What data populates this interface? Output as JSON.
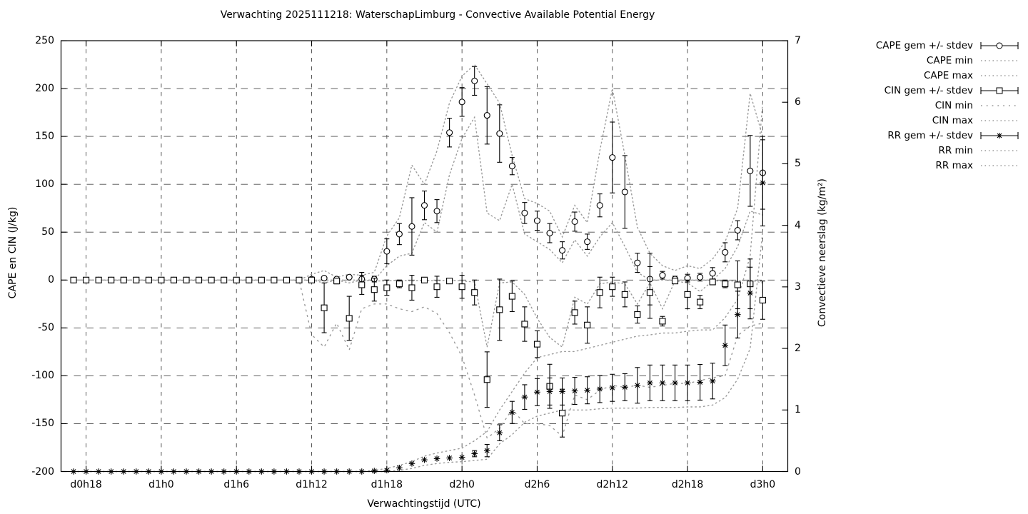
{
  "title": "Verwachting 2025111218: WaterschapLimburg - Convective Available Potential Energy",
  "axes": {
    "y_left_label": "CAPE en CIN (J/kg)",
    "y_right_label": "Convectieve neerslag (kg/m²)",
    "x_label": "Verwachtingstijd (UTC)",
    "y_left_ticks": [
      -200,
      -150,
      -100,
      -50,
      0,
      50,
      100,
      150,
      200,
      250
    ],
    "y_right_ticks": [
      0,
      1,
      2,
      3,
      4,
      5,
      6,
      7
    ],
    "x_tick_hours": [
      18,
      24,
      30,
      36,
      42,
      48,
      54,
      60,
      66,
      72
    ],
    "x_tick_labels": [
      "d0h18",
      "d1h0",
      "d1h6",
      "d1h12",
      "d1h18",
      "d2h0",
      "d2h6",
      "d2h12",
      "d2h18",
      "d3h0"
    ],
    "x_range_hours": [
      16,
      74
    ],
    "y_left_range": [
      -200,
      250
    ],
    "y_right_range": [
      0,
      7
    ],
    "grid": "dashed"
  },
  "legend": [
    {
      "label": "CAPE gem +/- stdev",
      "style": "errorbar",
      "marker": "circle"
    },
    {
      "label": "CAPE min",
      "style": "dotted",
      "marker": "none"
    },
    {
      "label": "CAPE max",
      "style": "dotted",
      "marker": "none"
    },
    {
      "label": "CIN gem +/- stdev",
      "style": "errorbar",
      "marker": "square"
    },
    {
      "label": "CIN min",
      "style": "dotted-sparse",
      "marker": "none"
    },
    {
      "label": "CIN max",
      "style": "dotted",
      "marker": "none"
    },
    {
      "label": "RR gem +/- stdev",
      "style": "errorbar",
      "marker": "asterisk"
    },
    {
      "label": "RR min",
      "style": "dotted",
      "marker": "none"
    },
    {
      "label": "RR max",
      "style": "dotted",
      "marker": "none"
    }
  ],
  "colors": {
    "data": "#000000",
    "grid": "#4a4a4a",
    "envelope": "#9a9a9a",
    "background": "#ffffff",
    "text": "#000000"
  },
  "chart_data": {
    "type": "line",
    "title": "Verwachting 2025111218: WaterschapLimburg - Convective Available Potential Energy",
    "xlabel": "Verwachtingstijd (UTC)",
    "ylabel_left": "CAPE en CIN (J/kg)",
    "ylabel_right": "Convectieve neerslag (kg/m²)",
    "ylim_left": [
      -200,
      250
    ],
    "ylim_right": [
      0,
      7
    ],
    "x_labels": [
      "d0h17",
      "d0h18",
      "d0h19",
      "d0h20",
      "d0h21",
      "d0h22",
      "d0h23",
      "d1h0",
      "d1h1",
      "d1h2",
      "d1h3",
      "d1h4",
      "d1h5",
      "d1h6",
      "d1h7",
      "d1h8",
      "d1h9",
      "d1h10",
      "d1h11",
      "d1h12",
      "d1h13",
      "d1h14",
      "d1h15",
      "d1h16",
      "d1h17",
      "d1h18",
      "d1h19",
      "d1h20",
      "d1h21",
      "d1h22",
      "d1h23",
      "d2h0",
      "d2h1",
      "d2h2",
      "d2h3",
      "d2h4",
      "d2h5",
      "d2h6",
      "d2h7",
      "d2h8",
      "d2h9",
      "d2h10",
      "d2h11",
      "d2h12",
      "d2h13",
      "d2h14",
      "d2h15",
      "d2h16",
      "d2h17",
      "d2h18",
      "d2h19",
      "d2h20",
      "d2h21",
      "d2h22",
      "d2h23",
      "d3h0"
    ],
    "series": [
      {
        "name": "CAPE gem +/- stdev",
        "axis": "left",
        "marker": "circle",
        "values": [
          0,
          0,
          0,
          0,
          0,
          0,
          0,
          0,
          0,
          0,
          0,
          0,
          0,
          0,
          0,
          0,
          0,
          0,
          0,
          1,
          2,
          1,
          3,
          1,
          1,
          30,
          48,
          56,
          78,
          72,
          154,
          186,
          208,
          172,
          153,
          119,
          70,
          62,
          49,
          31,
          61,
          40,
          78,
          128,
          92,
          18,
          1,
          5,
          1,
          2,
          3,
          7,
          29,
          52,
          114,
          112
        ],
        "stdev": [
          0,
          0,
          0,
          0,
          0,
          0,
          0,
          0,
          0,
          0,
          0,
          0,
          0,
          0,
          0,
          0,
          0,
          0,
          0,
          2,
          1,
          1,
          2,
          7,
          3,
          13,
          11,
          30,
          15,
          12,
          15,
          15,
          15,
          30,
          30,
          9,
          11,
          10,
          10,
          9,
          10,
          8,
          12,
          37,
          38,
          10,
          27,
          4,
          3,
          4,
          4,
          6,
          10,
          10,
          37,
          38
        ]
      },
      {
        "name": "CAPE min",
        "axis": "left",
        "marker": "none",
        "values": [
          0,
          0,
          0,
          0,
          0,
          0,
          0,
          0,
          0,
          0,
          0,
          0,
          0,
          0,
          0,
          0,
          0,
          0,
          0,
          0,
          0,
          0,
          0,
          0,
          0,
          15,
          25,
          28,
          60,
          50,
          110,
          148,
          170,
          70,
          62,
          100,
          48,
          40,
          32,
          18,
          42,
          25,
          45,
          60,
          35,
          8,
          0,
          0,
          0,
          0,
          0,
          0,
          12,
          35,
          72,
          68
        ]
      },
      {
        "name": "CAPE max",
        "axis": "left",
        "marker": "none",
        "values": [
          0,
          0,
          0,
          0,
          0,
          0,
          0,
          0,
          0,
          0,
          0,
          0,
          0,
          0,
          0,
          0,
          0,
          0,
          0,
          6,
          10,
          3,
          6,
          5,
          8,
          46,
          65,
          120,
          100,
          135,
          185,
          213,
          225,
          205,
          185,
          130,
          85,
          80,
          72,
          45,
          78,
          60,
          135,
          200,
          130,
          55,
          28,
          15,
          10,
          15,
          12,
          22,
          40,
          75,
          195,
          150
        ]
      },
      {
        "name": "CIN gem +/- stdev",
        "axis": "left",
        "marker": "square",
        "values": [
          0,
          0,
          0,
          0,
          0,
          0,
          0,
          0,
          0,
          0,
          0,
          0,
          0,
          0,
          0,
          0,
          0,
          0,
          0,
          0,
          -29,
          -1,
          -40,
          -5,
          -10,
          -8,
          -4,
          -8,
          0,
          -7,
          -1,
          -7,
          -13,
          -104,
          -31,
          -17,
          -46,
          -67,
          -111,
          -139,
          -34,
          -47,
          -13,
          -7,
          -15,
          -36,
          -13,
          -43,
          -1,
          -15,
          -23,
          -2,
          -4,
          -5,
          -4,
          -21
        ],
        "stdev": [
          0,
          0,
          0,
          0,
          0,
          0,
          0,
          0,
          0,
          0,
          0,
          0,
          0,
          0,
          0,
          0,
          0,
          0,
          0,
          1,
          26,
          3,
          23,
          10,
          12,
          8,
          4,
          13,
          2,
          11,
          2,
          12,
          13,
          29,
          32,
          16,
          18,
          14,
          23,
          25,
          12,
          19,
          16,
          10,
          13,
          9,
          27,
          5,
          2,
          15,
          7,
          2,
          4,
          25,
          26,
          20
        ]
      },
      {
        "name": "CIN min",
        "axis": "left",
        "marker": "none",
        "values": [
          0,
          0,
          0,
          0,
          0,
          0,
          0,
          0,
          0,
          0,
          0,
          0,
          0,
          0,
          0,
          0,
          0,
          0,
          0,
          -57,
          -70,
          -45,
          -73,
          -30,
          -25,
          -25,
          -30,
          -33,
          -28,
          -35,
          -55,
          -80,
          -120,
          -165,
          -155,
          -135,
          -150,
          -150,
          -152,
          -163,
          -120,
          -125,
          -115,
          -110,
          -112,
          -110,
          -112,
          -110,
          -108,
          -108,
          -105,
          -102,
          -100,
          -58,
          -48,
          -45
        ]
      },
      {
        "name": "CIN max",
        "axis": "left",
        "marker": "none",
        "values": [
          0,
          0,
          0,
          0,
          0,
          0,
          0,
          0,
          0,
          0,
          0,
          0,
          0,
          0,
          0,
          0,
          0,
          0,
          0,
          0,
          -3,
          0,
          -3,
          0,
          -1,
          -1,
          0,
          -1,
          0,
          -1,
          0,
          -1,
          -2,
          -70,
          -3,
          -2,
          -15,
          -40,
          -60,
          -70,
          -18,
          -25,
          -4,
          -2,
          -4,
          -25,
          -3,
          -30,
          -1,
          -3,
          -12,
          -1,
          -1,
          -1,
          0,
          -3
        ]
      },
      {
        "name": "RR gem +/- stdev",
        "axis": "right",
        "marker": "asterisk",
        "values": [
          0,
          0,
          0,
          0,
          0,
          0,
          0,
          0,
          0,
          0,
          0,
          0,
          0,
          0,
          0,
          0,
          0,
          0,
          0,
          0,
          0,
          0,
          0,
          0,
          0.01,
          0.02,
          0.06,
          0.13,
          0.19,
          0.21,
          0.22,
          0.23,
          0.29,
          0.34,
          0.63,
          0.96,
          1.21,
          1.29,
          1.3,
          1.3,
          1.31,
          1.32,
          1.34,
          1.36,
          1.37,
          1.4,
          1.44,
          1.44,
          1.44,
          1.44,
          1.45,
          1.47,
          2.05,
          2.55,
          2.9,
          4.69
        ],
        "stdev": [
          0,
          0,
          0,
          0,
          0,
          0,
          0,
          0,
          0,
          0,
          0,
          0,
          0,
          0,
          0,
          0,
          0,
          0,
          0,
          0,
          0,
          0,
          0,
          0,
          0,
          0,
          0,
          0,
          0,
          0,
          0,
          0,
          0.05,
          0.1,
          0.13,
          0.18,
          0.2,
          0.22,
          0.22,
          0.22,
          0.22,
          0.22,
          0.22,
          0.22,
          0.22,
          0.29,
          0.29,
          0.29,
          0.29,
          0.29,
          0.29,
          0.29,
          0.33,
          0.38,
          0.42,
          0.7
        ]
      },
      {
        "name": "RR min",
        "axis": "right",
        "marker": "none",
        "values": [
          0,
          0,
          0,
          0,
          0,
          0,
          0,
          0,
          0,
          0,
          0,
          0,
          0,
          0,
          0,
          0,
          0,
          0,
          0,
          0,
          0,
          0,
          0,
          0,
          0,
          0,
          0.02,
          0.05,
          0.1,
          0.13,
          0.15,
          0.16,
          0.18,
          0.2,
          0.45,
          0.6,
          0.8,
          0.9,
          0.95,
          1.0,
          1.0,
          1.0,
          1.02,
          1.03,
          1.03,
          1.03,
          1.04,
          1.04,
          1.04,
          1.05,
          1.05,
          1.08,
          1.2,
          1.5,
          2.0,
          3.9
        ]
      },
      {
        "name": "RR max",
        "axis": "right",
        "marker": "none",
        "values": [
          0,
          0,
          0,
          0,
          0,
          0,
          0,
          0,
          0,
          0,
          0,
          0,
          0,
          0,
          0,
          0,
          0,
          0,
          0,
          0,
          0,
          0,
          0,
          0,
          0.02,
          0.05,
          0.1,
          0.16,
          0.25,
          0.3,
          0.34,
          0.38,
          0.5,
          0.65,
          1.0,
          1.3,
          1.6,
          1.85,
          1.9,
          1.95,
          1.95,
          2.0,
          2.05,
          2.1,
          2.15,
          2.2,
          2.22,
          2.25,
          2.25,
          2.28,
          2.3,
          2.3,
          2.5,
          2.8,
          3.5,
          6.0
        ]
      }
    ],
    "legend_position": "outside-right",
    "grid": true
  }
}
